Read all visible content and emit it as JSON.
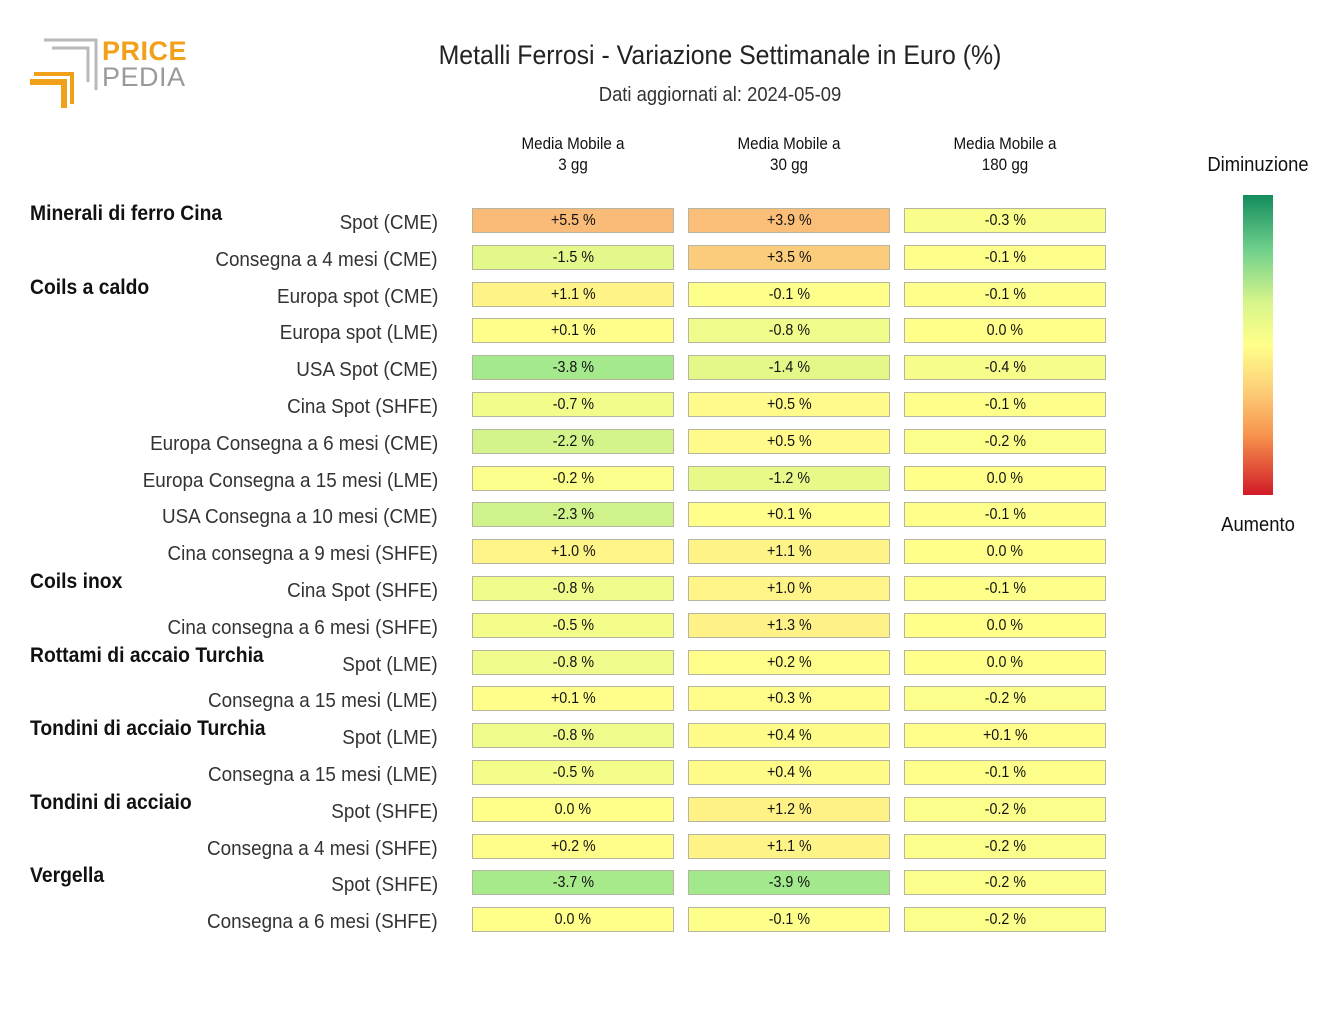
{
  "logo": {
    "word1": "PRICE",
    "word2": "PEDIA"
  },
  "title": "Metalli Ferrosi - Variazione Settimanale in Euro (%)",
  "subtitle": "Dati aggiornati al: 2024-05-09",
  "columns": [
    {
      "line1": "Media Mobile a",
      "line2": "3 gg"
    },
    {
      "line1": "Media Mobile a",
      "line2": "30 gg"
    },
    {
      "line1": "Media Mobile a",
      "line2": "180 gg"
    }
  ],
  "legend": {
    "top": "Diminuzione",
    "bottom": "Aumento"
  },
  "chart_data": {
    "type": "heatmap",
    "title": "Metalli Ferrosi - Variazione Settimanale in Euro (%)",
    "subtitle": "Dati aggiornati al: 2024-05-09",
    "columns": [
      "Media Mobile a 3 gg",
      "Media Mobile a 30 gg",
      "Media Mobile a 180 gg"
    ],
    "unit": "%",
    "color_scale": {
      "low_label": "Aumento",
      "high_label": "Diminuzione",
      "colors": [
        "#138c5c",
        "#d8f58a",
        "#ffff8a",
        "#f7944d",
        "#d11a28"
      ]
    },
    "rows": [
      {
        "group": "Minerali di ferro Cina",
        "label": "Spot (CME)",
        "values": [
          5.5,
          3.9,
          -0.3
        ],
        "texts": [
          "+5.5 %",
          "+3.9 %",
          "-0.3 %"
        ]
      },
      {
        "group": "",
        "label": "Consegna a 4 mesi (CME)",
        "values": [
          -1.5,
          3.5,
          -0.1
        ],
        "texts": [
          "-1.5 %",
          "+3.5 %",
          "-0.1 %"
        ]
      },
      {
        "group": "Coils a caldo",
        "label": "Europa spot (CME)",
        "values": [
          1.1,
          -0.1,
          -0.1
        ],
        "texts": [
          "+1.1 %",
          "-0.1 %",
          "-0.1 %"
        ]
      },
      {
        "group": "",
        "label": "Europa spot (LME)",
        "values": [
          0.1,
          -0.8,
          0.0
        ],
        "texts": [
          "+0.1 %",
          "-0.8 %",
          "0.0 %"
        ]
      },
      {
        "group": "",
        "label": "USA Spot (CME)",
        "values": [
          -3.8,
          -1.4,
          -0.4
        ],
        "texts": [
          "-3.8 %",
          "-1.4 %",
          "-0.4 %"
        ]
      },
      {
        "group": "",
        "label": "Cina Spot (SHFE)",
        "values": [
          -0.7,
          0.5,
          -0.1
        ],
        "texts": [
          "-0.7 %",
          "+0.5 %",
          "-0.1 %"
        ]
      },
      {
        "group": "",
        "label": "Europa Consegna a 6 mesi (CME)",
        "values": [
          -2.2,
          0.5,
          -0.2
        ],
        "texts": [
          "-2.2 %",
          "+0.5 %",
          "-0.2 %"
        ]
      },
      {
        "group": "",
        "label": "Europa Consegna a 15 mesi (LME)",
        "values": [
          -0.2,
          -1.2,
          0.0
        ],
        "texts": [
          "-0.2 %",
          "-1.2 %",
          "0.0 %"
        ]
      },
      {
        "group": "",
        "label": "USA Consegna a 10 mesi (CME)",
        "values": [
          -2.3,
          0.1,
          -0.1
        ],
        "texts": [
          "-2.3 %",
          "+0.1 %",
          "-0.1 %"
        ]
      },
      {
        "group": "",
        "label": "Cina consegna a 9 mesi (SHFE)",
        "values": [
          1.0,
          1.1,
          0.0
        ],
        "texts": [
          "+1.0 %",
          "+1.1 %",
          "0.0 %"
        ]
      },
      {
        "group": "Coils inox",
        "label": "Cina Spot (SHFE)",
        "values": [
          -0.8,
          1.0,
          -0.1
        ],
        "texts": [
          "-0.8 %",
          "+1.0 %",
          "-0.1 %"
        ]
      },
      {
        "group": "",
        "label": "Cina consegna a 6 mesi (SHFE)",
        "values": [
          -0.5,
          1.3,
          0.0
        ],
        "texts": [
          "-0.5 %",
          "+1.3 %",
          "0.0 %"
        ]
      },
      {
        "group": "Rottami di accaio Turchia",
        "label": "Spot (LME)",
        "values": [
          -0.8,
          0.2,
          0.0
        ],
        "texts": [
          "-0.8 %",
          "+0.2 %",
          "0.0 %"
        ]
      },
      {
        "group": "",
        "label": "Consegna a 15 mesi (LME)",
        "values": [
          0.1,
          0.3,
          -0.2
        ],
        "texts": [
          "+0.1 %",
          "+0.3 %",
          "-0.2 %"
        ]
      },
      {
        "group": "Tondini di acciaio Turchia",
        "label": "Spot (LME)",
        "values": [
          -0.8,
          0.4,
          0.1
        ],
        "texts": [
          "-0.8 %",
          "+0.4 %",
          "+0.1 %"
        ]
      },
      {
        "group": "",
        "label": "Consegna a 15 mesi (LME)",
        "values": [
          -0.5,
          0.4,
          -0.1
        ],
        "texts": [
          "-0.5 %",
          "+0.4 %",
          "-0.1 %"
        ]
      },
      {
        "group": "Tondini di acciaio",
        "label": "Spot (SHFE)",
        "values": [
          0.0,
          1.2,
          -0.2
        ],
        "texts": [
          "0.0 %",
          "+1.2 %",
          "-0.2 %"
        ]
      },
      {
        "group": "",
        "label": "Consegna a 4 mesi (SHFE)",
        "values": [
          0.2,
          1.1,
          -0.2
        ],
        "texts": [
          "+0.2 %",
          "+1.1 %",
          "-0.2 %"
        ]
      },
      {
        "group": "Vergella",
        "label": "Spot (SHFE)",
        "values": [
          -3.7,
          -3.9,
          -0.2
        ],
        "texts": [
          "-3.7 %",
          "-3.9 %",
          "-0.2 %"
        ]
      },
      {
        "group": "",
        "label": "Consegna a 6 mesi (SHFE)",
        "values": [
          0.0,
          -0.1,
          -0.2
        ],
        "texts": [
          "0.0 %",
          "-0.1 %",
          "-0.2 %"
        ]
      }
    ]
  }
}
